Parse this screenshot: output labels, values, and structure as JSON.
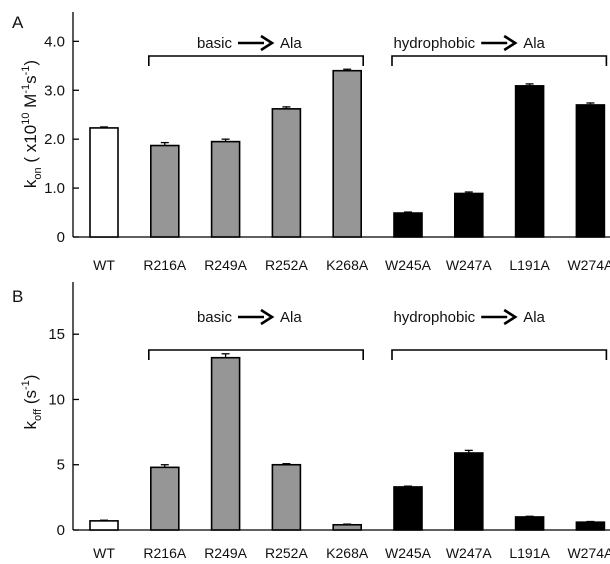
{
  "chart_data": [
    {
      "type": "bar",
      "panel_label": "A",
      "ylabel": {
        "k": "k",
        "sub": "on",
        "open": " ( x10",
        "exp": "10",
        "m": " M",
        "mexp": "-1",
        "s": "s",
        "sexp": "-1",
        "close": ")"
      },
      "ylim": [
        0,
        4.6
      ],
      "yticks": [
        "0",
        "1.0",
        "2.0",
        "3.0",
        "4.0"
      ],
      "ytick_values": [
        0,
        1,
        2,
        3,
        4
      ],
      "categories": [
        "WT",
        "R216A",
        "R249A",
        "R252A",
        "K268A",
        "W245A",
        "W247A",
        "L191A",
        "W274A"
      ],
      "values": [
        2.23,
        1.87,
        1.95,
        2.62,
        3.4,
        0.49,
        0.89,
        3.09,
        2.7
      ],
      "errors": [
        0.02,
        0.06,
        0.05,
        0.04,
        0.03,
        0.02,
        0.03,
        0.04,
        0.04
      ],
      "bar_groups": [
        "wt",
        "basic",
        "basic",
        "basic",
        "basic",
        "hydro",
        "hydro",
        "hydro",
        "hydro"
      ],
      "groups": [
        {
          "label": "basic",
          "arrow_to": "Ala",
          "from_index": 1,
          "to_index": 4
        },
        {
          "label": "hydrophobic",
          "arrow_to": "Ala",
          "from_index": 5,
          "to_index": 8
        }
      ],
      "colors": {
        "wt": "#ffffff",
        "basic": "#969696",
        "hydro": "#000000",
        "outline": "#000000"
      },
      "grid": false
    },
    {
      "type": "bar",
      "panel_label": "B",
      "ylabel": {
        "k": "k",
        "sub": "off",
        "open": " (s",
        "exp": "-1",
        "close": ")"
      },
      "ylim": [
        0,
        19
      ],
      "yticks": [
        "0",
        "5",
        "10",
        "15"
      ],
      "ytick_values": [
        0,
        5,
        10,
        15
      ],
      "categories": [
        "WT",
        "R216A",
        "R249A",
        "R252A",
        "K268A",
        "W245A",
        "W247A",
        "L191A",
        "W274A"
      ],
      "values": [
        0.7,
        4.8,
        13.2,
        5.0,
        0.4,
        3.3,
        5.9,
        1.0,
        0.6
      ],
      "errors": [
        0.05,
        0.2,
        0.3,
        0.08,
        0.05,
        0.06,
        0.2,
        0.05,
        0.05
      ],
      "bar_groups": [
        "wt",
        "basic",
        "basic",
        "basic",
        "basic",
        "hydro",
        "hydro",
        "hydro",
        "hydro"
      ],
      "groups": [
        {
          "label": "basic",
          "arrow_to": "Ala",
          "from_index": 1,
          "to_index": 4
        },
        {
          "label": "hydrophobic",
          "arrow_to": "Ala",
          "from_index": 5,
          "to_index": 8
        }
      ],
      "colors": {
        "wt": "#ffffff",
        "basic": "#969696",
        "hydro": "#000000",
        "outline": "#000000"
      },
      "grid": false
    }
  ]
}
